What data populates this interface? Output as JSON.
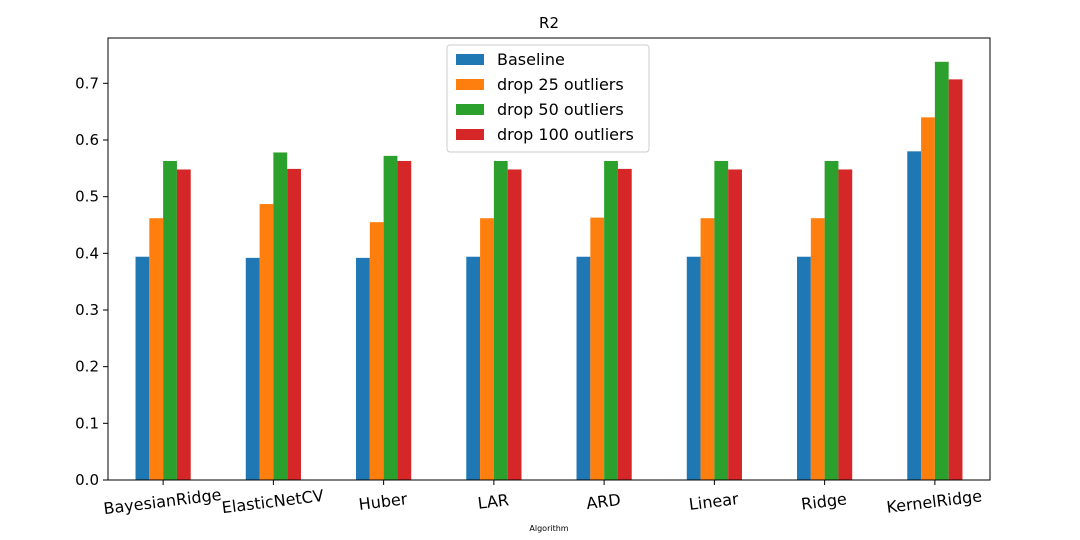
{
  "chart_data": {
    "type": "bar",
    "title": "R2",
    "xlabel": "Algorithm",
    "ylabel": "",
    "ylim": [
      0,
      0.78
    ],
    "yticks": [
      0.0,
      0.1,
      0.2,
      0.3,
      0.4,
      0.5,
      0.6,
      0.7
    ],
    "ytick_labels": [
      "0.0",
      "0.1",
      "0.2",
      "0.3",
      "0.4",
      "0.5",
      "0.6",
      "0.7"
    ],
    "categories": [
      "BayesianRidge",
      "ElasticNetCV",
      "Huber",
      "LAR",
      "ARD",
      "Linear",
      "Ridge",
      "KernelRidge"
    ],
    "series": [
      {
        "name": "Baseline",
        "color": "#1f77b4",
        "values": [
          0.394,
          0.392,
          0.392,
          0.394,
          0.394,
          0.394,
          0.394,
          0.58
        ]
      },
      {
        "name": "drop 25 outliers",
        "color": "#ff7f0e",
        "values": [
          0.462,
          0.487,
          0.455,
          0.462,
          0.463,
          0.462,
          0.462,
          0.64
        ]
      },
      {
        "name": "drop 50 outliers",
        "color": "#2ca02c",
        "values": [
          0.563,
          0.578,
          0.572,
          0.563,
          0.563,
          0.563,
          0.563,
          0.738
        ]
      },
      {
        "name": "drop 100 outliers",
        "color": "#d62728",
        "values": [
          0.548,
          0.549,
          0.563,
          0.548,
          0.549,
          0.548,
          0.548,
          0.707
        ]
      }
    ],
    "legend_position": "top-center",
    "grid": false
  }
}
